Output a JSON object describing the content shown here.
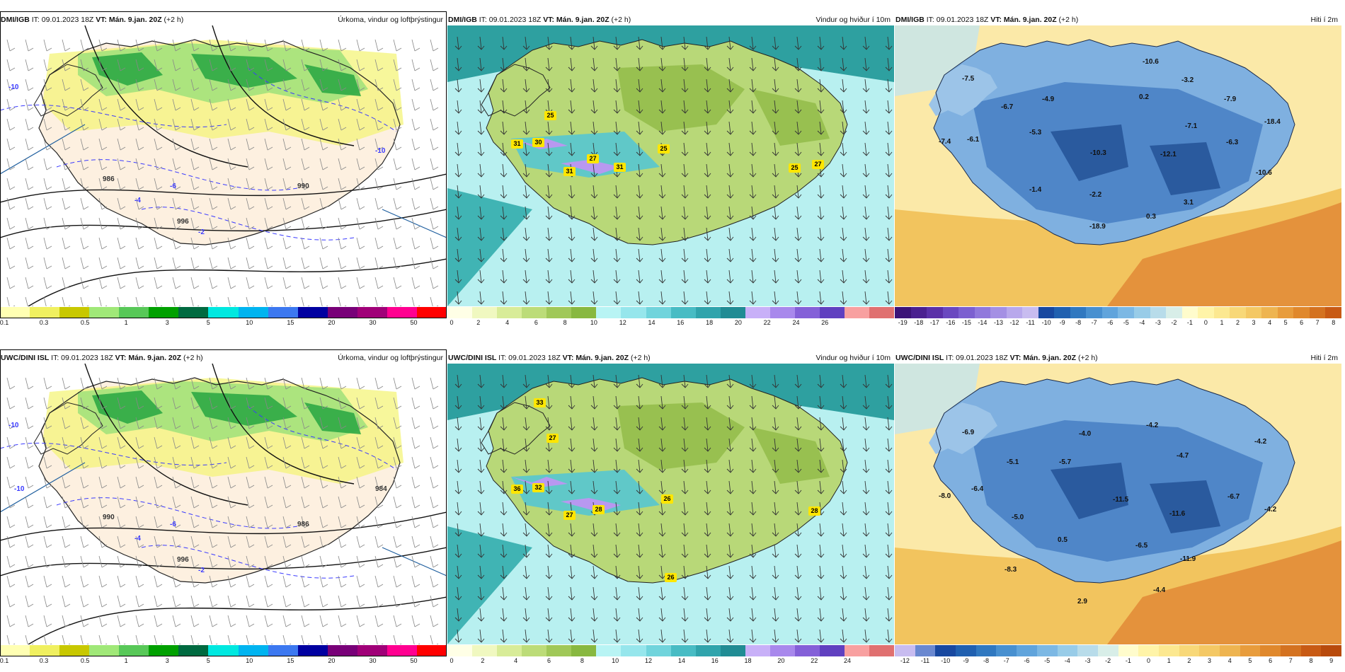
{
  "panels": [
    {
      "id": "p1",
      "model": "DMI/IGB",
      "issue": "IT: 09.01.2023 18Z",
      "valid": "VT: Mán. 9.jan. 20Z",
      "offset": "(+2 h)",
      "product": "Úrkoma, vindur og loftþrýstingur",
      "type": "precip",
      "colorbar": {
        "colors": [
          "#ffffb3",
          "#f0f060",
          "#c8c800",
          "#a0e878",
          "#58c858",
          "#00a000",
          "#006a40",
          "#00e8e0",
          "#00b4f0",
          "#3c78f0",
          "#0000a0",
          "#780078",
          "#a00078",
          "#ff0090",
          "#ff0000"
        ],
        "ticks": [
          "0.1",
          "0.3",
          "0.5",
          "1",
          "3",
          "5",
          "10",
          "15",
          "20",
          "30",
          "50"
        ]
      },
      "map_labels": [
        "-10",
        "-6",
        "-4",
        "-2",
        "986",
        "996",
        "990",
        "-10"
      ]
    },
    {
      "id": "p2",
      "model": "DMI/IGB",
      "issue": "IT: 09.01.2023 18Z",
      "valid": "VT: Mán. 9.jan. 20Z",
      "offset": "(+2 h)",
      "product": "Vindur og hviður í 10m",
      "type": "wind",
      "colorbar": {
        "colors": [
          "#ffffe6",
          "#f0f8c0",
          "#d8ec98",
          "#bcdc78",
          "#a0c858",
          "#88b840",
          "#b8f4f4",
          "#96e6ec",
          "#70d4dc",
          "#48bcc4",
          "#30a4ac",
          "#208c94",
          "#c8b0f8",
          "#a888ec",
          "#8460d8",
          "#6040c0",
          "#f8a0a0",
          "#e07070"
        ],
        "ticks": [
          "0",
          "2",
          "4",
          "6",
          "8",
          "10",
          "12",
          "14",
          "16",
          "18",
          "20",
          "22",
          "24",
          "26"
        ]
      },
      "gusts": [
        {
          "v": "25",
          "x": 145,
          "y": 127
        },
        {
          "v": "31",
          "x": 98,
          "y": 167
        },
        {
          "v": "30",
          "x": 128,
          "y": 165
        },
        {
          "v": "27",
          "x": 205,
          "y": 188
        },
        {
          "v": "31",
          "x": 172,
          "y": 206
        },
        {
          "v": "31",
          "x": 243,
          "y": 200
        },
        {
          "v": "25",
          "x": 305,
          "y": 174
        },
        {
          "v": "25",
          "x": 490,
          "y": 201
        },
        {
          "v": "27",
          "x": 523,
          "y": 196
        }
      ]
    },
    {
      "id": "p3",
      "model": "DMI/IGB",
      "issue": "IT: 09.01.2023 18Z",
      "valid": "VT: Mán. 9.jan. 20Z",
      "offset": "(+2 h)",
      "product": "Hiti í 2m",
      "type": "temp",
      "colorbar": {
        "colors": [
          "#3c1478",
          "#4a2090",
          "#5a30a8",
          "#6a48c0",
          "#7c60d0",
          "#9078dc",
          "#a490e4",
          "#b8a8ec",
          "#c8bcf0",
          "#1848a0",
          "#2060b0",
          "#3078c0",
          "#4890d0",
          "#60a4dc",
          "#7cb8e4",
          "#98cce8",
          "#b8dcea",
          "#d8eee8",
          "#fffccc",
          "#fff4a8",
          "#fce890",
          "#f8d878",
          "#f4c864",
          "#eeb450",
          "#e89c3c",
          "#e0882c",
          "#d47220",
          "#c85a14"
        ],
        "ticks": [
          "-19",
          "-18",
          "-17",
          "-16",
          "-15",
          "-14",
          "-13",
          "-12",
          "-11",
          "-10",
          "-9",
          "-8",
          "-7",
          "-6",
          "-5",
          "-4",
          "-3",
          "-2",
          "-1",
          "0",
          "1",
          "2",
          "3",
          "4",
          "5",
          "6",
          "7",
          "8"
        ]
      },
      "temps": [
        {
          "v": "-10.6",
          "x": 360,
          "y": 52
        },
        {
          "v": "-7.5",
          "x": 105,
          "y": 76
        },
        {
          "v": "-3.2",
          "x": 415,
          "y": 78
        },
        {
          "v": "-4.9",
          "x": 218,
          "y": 105
        },
        {
          "v": "-6.7",
          "x": 160,
          "y": 116
        },
        {
          "v": "0.2",
          "x": 355,
          "y": 102
        },
        {
          "v": "-7.9",
          "x": 475,
          "y": 105
        },
        {
          "v": "-7.1",
          "x": 420,
          "y": 143
        },
        {
          "v": "-18.4",
          "x": 532,
          "y": 137
        },
        {
          "v": "-5.3",
          "x": 200,
          "y": 152
        },
        {
          "v": "-6.1",
          "x": 112,
          "y": 162
        },
        {
          "v": "-7.4",
          "x": 72,
          "y": 165
        },
        {
          "v": "-6.3",
          "x": 478,
          "y": 166
        },
        {
          "v": "-10.3",
          "x": 286,
          "y": 181
        },
        {
          "v": "-12.1",
          "x": 385,
          "y": 183
        },
        {
          "v": "-10.6",
          "x": 520,
          "y": 209
        },
        {
          "v": "-1.4",
          "x": 200,
          "y": 233
        },
        {
          "v": "-2.2",
          "x": 285,
          "y": 240
        },
        {
          "v": "3.1",
          "x": 418,
          "y": 251
        },
        {
          "v": "0.3",
          "x": 365,
          "y": 271
        },
        {
          "v": "-18.9",
          "x": 285,
          "y": 285
        }
      ]
    },
    {
      "id": "p4",
      "model": "UWC/DINI ISL",
      "issue": "IT: 09.01.2023 18Z",
      "valid": "VT: Mán. 9.jan. 20Z",
      "offset": "(+2 h)",
      "product": "Úrkoma, vindur og loftþrýstingur",
      "type": "precip",
      "colorbar": {
        "colors": [
          "#ffffb3",
          "#f0f060",
          "#c8c800",
          "#a0e878",
          "#58c858",
          "#00a000",
          "#006a40",
          "#00e8e0",
          "#00b4f0",
          "#3c78f0",
          "#0000a0",
          "#780078",
          "#a00078",
          "#ff0090",
          "#ff0000"
        ],
        "ticks": [
          "0.1",
          "0.3",
          "0.5",
          "1",
          "3",
          "5",
          "10",
          "15",
          "20",
          "30",
          "50"
        ]
      },
      "map_labels": [
        "-10",
        "-6",
        "-4",
        "-2",
        "990",
        "996",
        "986",
        "984",
        "-10"
      ]
    },
    {
      "id": "p5",
      "model": "UWC/DINI ISL",
      "issue": "IT: 09.01.2023 18Z",
      "valid": "VT: Mán. 9.jan. 20Z",
      "offset": "(+2 h)",
      "product": "Vindur og hviður í 10m",
      "type": "wind",
      "colorbar": {
        "colors": [
          "#ffffe6",
          "#f0f8c0",
          "#d8ec98",
          "#bcdc78",
          "#a0c858",
          "#88b840",
          "#b8f4f4",
          "#96e6ec",
          "#70d4dc",
          "#48bcc4",
          "#30a4ac",
          "#208c94",
          "#c8b0f8",
          "#a888ec",
          "#8460d8",
          "#6040c0",
          "#f8a0a0",
          "#e07070"
        ],
        "ticks": [
          "0",
          "2",
          "4",
          "6",
          "8",
          "10",
          "12",
          "14",
          "16",
          "18",
          "20",
          "22",
          "24"
        ]
      },
      "gusts": [
        {
          "v": "33",
          "x": 130,
          "y": 55
        },
        {
          "v": "27",
          "x": 148,
          "y": 105
        },
        {
          "v": "36",
          "x": 98,
          "y": 177
        },
        {
          "v": "32",
          "x": 128,
          "y": 175
        },
        {
          "v": "27",
          "x": 172,
          "y": 214
        },
        {
          "v": "28",
          "x": 213,
          "y": 206
        },
        {
          "v": "26",
          "x": 310,
          "y": 191
        },
        {
          "v": "28",
          "x": 518,
          "y": 208
        },
        {
          "v": "26",
          "x": 315,
          "y": 302
        }
      ]
    },
    {
      "id": "p6",
      "model": "UWC/DINI ISL",
      "issue": "IT: 09.01.2023 18Z",
      "valid": "VT: Mán. 9.jan. 20Z",
      "offset": "(+2 h)",
      "product": "Hiti í 2m",
      "type": "temp",
      "colorbar": {
        "colors": [
          "#c8bcf0",
          "#6a88d0",
          "#1848a0",
          "#2060b0",
          "#3078c0",
          "#4890d0",
          "#60a4dc",
          "#7cb8e4",
          "#98cce8",
          "#b8dcea",
          "#d8eee8",
          "#fffccc",
          "#fff4a8",
          "#fce890",
          "#f8d878",
          "#f4c864",
          "#eeb450",
          "#e89c3c",
          "#e0882c",
          "#d47220",
          "#c85a14",
          "#b84a0c"
        ],
        "ticks": [
          "-12",
          "-11",
          "-10",
          "-9",
          "-8",
          "-7",
          "-6",
          "-5",
          "-4",
          "-3",
          "-2",
          "-1",
          "0",
          "1",
          "2",
          "3",
          "4",
          "5",
          "6",
          "7",
          "8",
          "9"
        ]
      },
      "temps": [
        {
          "v": "-6.9",
          "x": 105,
          "y": 98
        },
        {
          "v": "-4.0",
          "x": 270,
          "y": 100
        },
        {
          "v": "-4.2",
          "x": 365,
          "y": 88
        },
        {
          "v": "-4.2",
          "x": 518,
          "y": 111
        },
        {
          "v": "-5.1",
          "x": 168,
          "y": 140
        },
        {
          "v": "-5.7",
          "x": 242,
          "y": 140
        },
        {
          "v": "-4.7",
          "x": 408,
          "y": 131
        },
        {
          "v": "-6.4",
          "x": 118,
          "y": 178
        },
        {
          "v": "-8.0",
          "x": 72,
          "y": 188
        },
        {
          "v": "-6.7",
          "x": 480,
          "y": 189
        },
        {
          "v": "-11.5",
          "x": 318,
          "y": 193
        },
        {
          "v": "-11.6",
          "x": 398,
          "y": 213
        },
        {
          "v": "-4.2",
          "x": 532,
          "y": 207
        },
        {
          "v": "-5.0",
          "x": 175,
          "y": 218
        },
        {
          "v": "0.5",
          "x": 240,
          "y": 250
        },
        {
          "v": "-6.5",
          "x": 350,
          "y": 258
        },
        {
          "v": "-11.9",
          "x": 413,
          "y": 277
        },
        {
          "v": "-8.3",
          "x": 165,
          "y": 292
        },
        {
          "v": "-4.4",
          "x": 375,
          "y": 321
        },
        {
          "v": "2.9",
          "x": 268,
          "y": 337
        }
      ]
    }
  ]
}
